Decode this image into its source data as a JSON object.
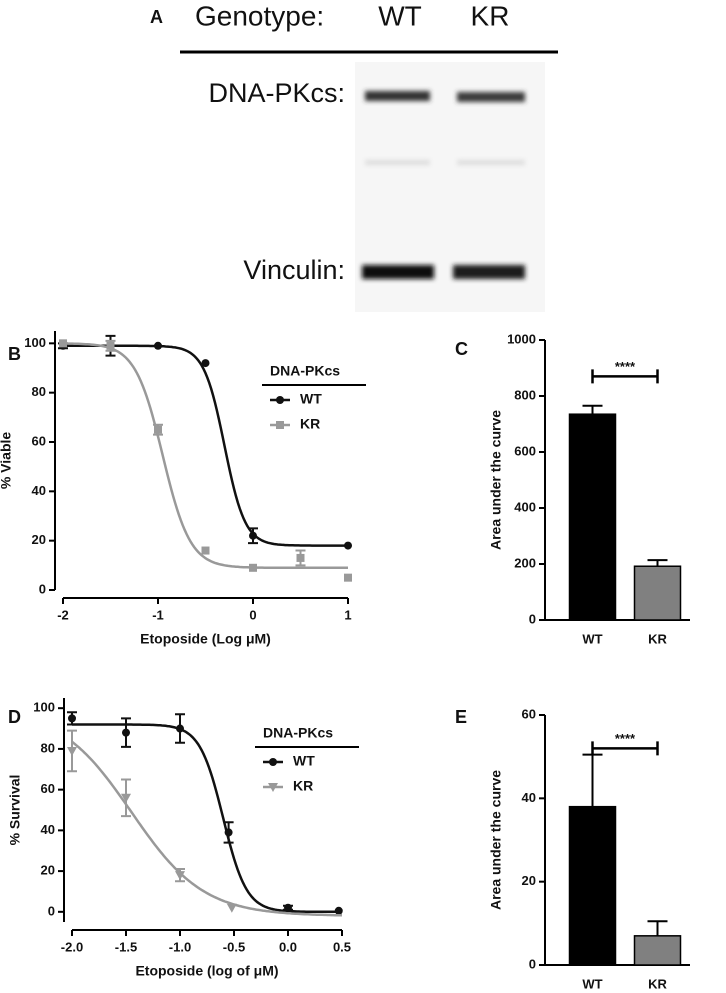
{
  "blot": {
    "panel": "A",
    "header": "Genotype:",
    "lanes": [
      "WT",
      "KR"
    ],
    "rows": [
      "DNA-PKcs:",
      "Vinculin:"
    ]
  },
  "chart_data": [
    {
      "type": "line",
      "panel": "B",
      "xlabel": "Etoposide (Log μM)",
      "ylabel": "% Viable",
      "xlim": [
        -2,
        1
      ],
      "xticks": [
        -2,
        -1,
        0,
        1
      ],
      "ylim": [
        0,
        105
      ],
      "yticks": [
        0,
        20,
        40,
        60,
        80,
        100
      ],
      "legend_title": "DNA-PKcs",
      "series": [
        {
          "name": "WT",
          "color": "#111111",
          "marker": "circle",
          "x": [
            -2,
            -1.5,
            -1,
            -0.5,
            0,
            1
          ],
          "values": [
            99,
            99,
            99,
            92,
            22,
            18
          ],
          "error": [
            1,
            4,
            0,
            0,
            3,
            0
          ],
          "curve": {
            "top": 99,
            "bottom": 18,
            "center": -0.3,
            "slope": 4
          }
        },
        {
          "name": "KR",
          "color": "#999999",
          "marker": "square",
          "x": [
            -2,
            -1.5,
            -1,
            -0.5,
            0,
            0.5,
            1
          ],
          "values": [
            100,
            99,
            65,
            16,
            9,
            13,
            5
          ],
          "error": [
            0,
            2,
            2,
            0,
            0,
            3,
            0
          ],
          "curve": {
            "top": 100,
            "bottom": 9,
            "center": -0.95,
            "slope": 3
          }
        }
      ]
    },
    {
      "type": "bar",
      "panel": "C",
      "ylabel": "Area  under the curve",
      "categories": [
        "WT",
        "KR"
      ],
      "values": [
        735,
        192
      ],
      "error": [
        30,
        22
      ],
      "colors": [
        "#000000",
        "#808080"
      ],
      "ylim": [
        0,
        1000
      ],
      "yticks": [
        0,
        200,
        400,
        600,
        800,
        1000
      ],
      "annotation": "****",
      "annotation_level": 870
    },
    {
      "type": "line",
      "panel": "D",
      "xlabel": "Etoposide (log of μM)",
      "ylabel": "% Survival",
      "xlim": [
        -2,
        0.5
      ],
      "xticks": [
        {
          "value": -2,
          "label": "-2.0"
        },
        -1.5,
        {
          "value": -1,
          "label": "-1.0"
        },
        -0.5,
        {
          "value": 0,
          "label": "0.0"
        },
        0.5
      ],
      "ylim": [
        -5,
        105
      ],
      "yticks": [
        0,
        20,
        40,
        60,
        80,
        100
      ],
      "legend_title": "DNA-PKcs",
      "series": [
        {
          "name": "WT",
          "color": "#111111",
          "marker": "circle",
          "x": [
            -2,
            -1.5,
            -1,
            -0.55,
            0,
            0.47
          ],
          "values": [
            95,
            88,
            90,
            39,
            2,
            0.5
          ],
          "error": [
            3,
            7,
            7,
            5,
            1,
            0
          ],
          "curve": {
            "top": 92,
            "bottom": 0,
            "center": -0.6,
            "slope": 4
          }
        },
        {
          "name": "KR",
          "color": "#999999",
          "marker": "triangle",
          "x": [
            -2,
            -1.5,
            -1,
            -0.52
          ],
          "values": [
            79,
            56,
            18,
            2
          ],
          "error": [
            10,
            9,
            3,
            0
          ],
          "curve": {
            "top": 100,
            "bottom": -2,
            "center": -1.45,
            "slope": 1.3
          }
        }
      ]
    },
    {
      "type": "bar",
      "panel": "E",
      "ylabel": "Area  under the curve",
      "categories": [
        "WT",
        "KR"
      ],
      "values": [
        38,
        7
      ],
      "error": [
        12.5,
        3.5
      ],
      "colors": [
        "#000000",
        "#808080"
      ],
      "ylim": [
        0,
        60
      ],
      "yticks": [
        0,
        20,
        40,
        60
      ],
      "annotation": "****",
      "annotation_level": 52
    }
  ]
}
